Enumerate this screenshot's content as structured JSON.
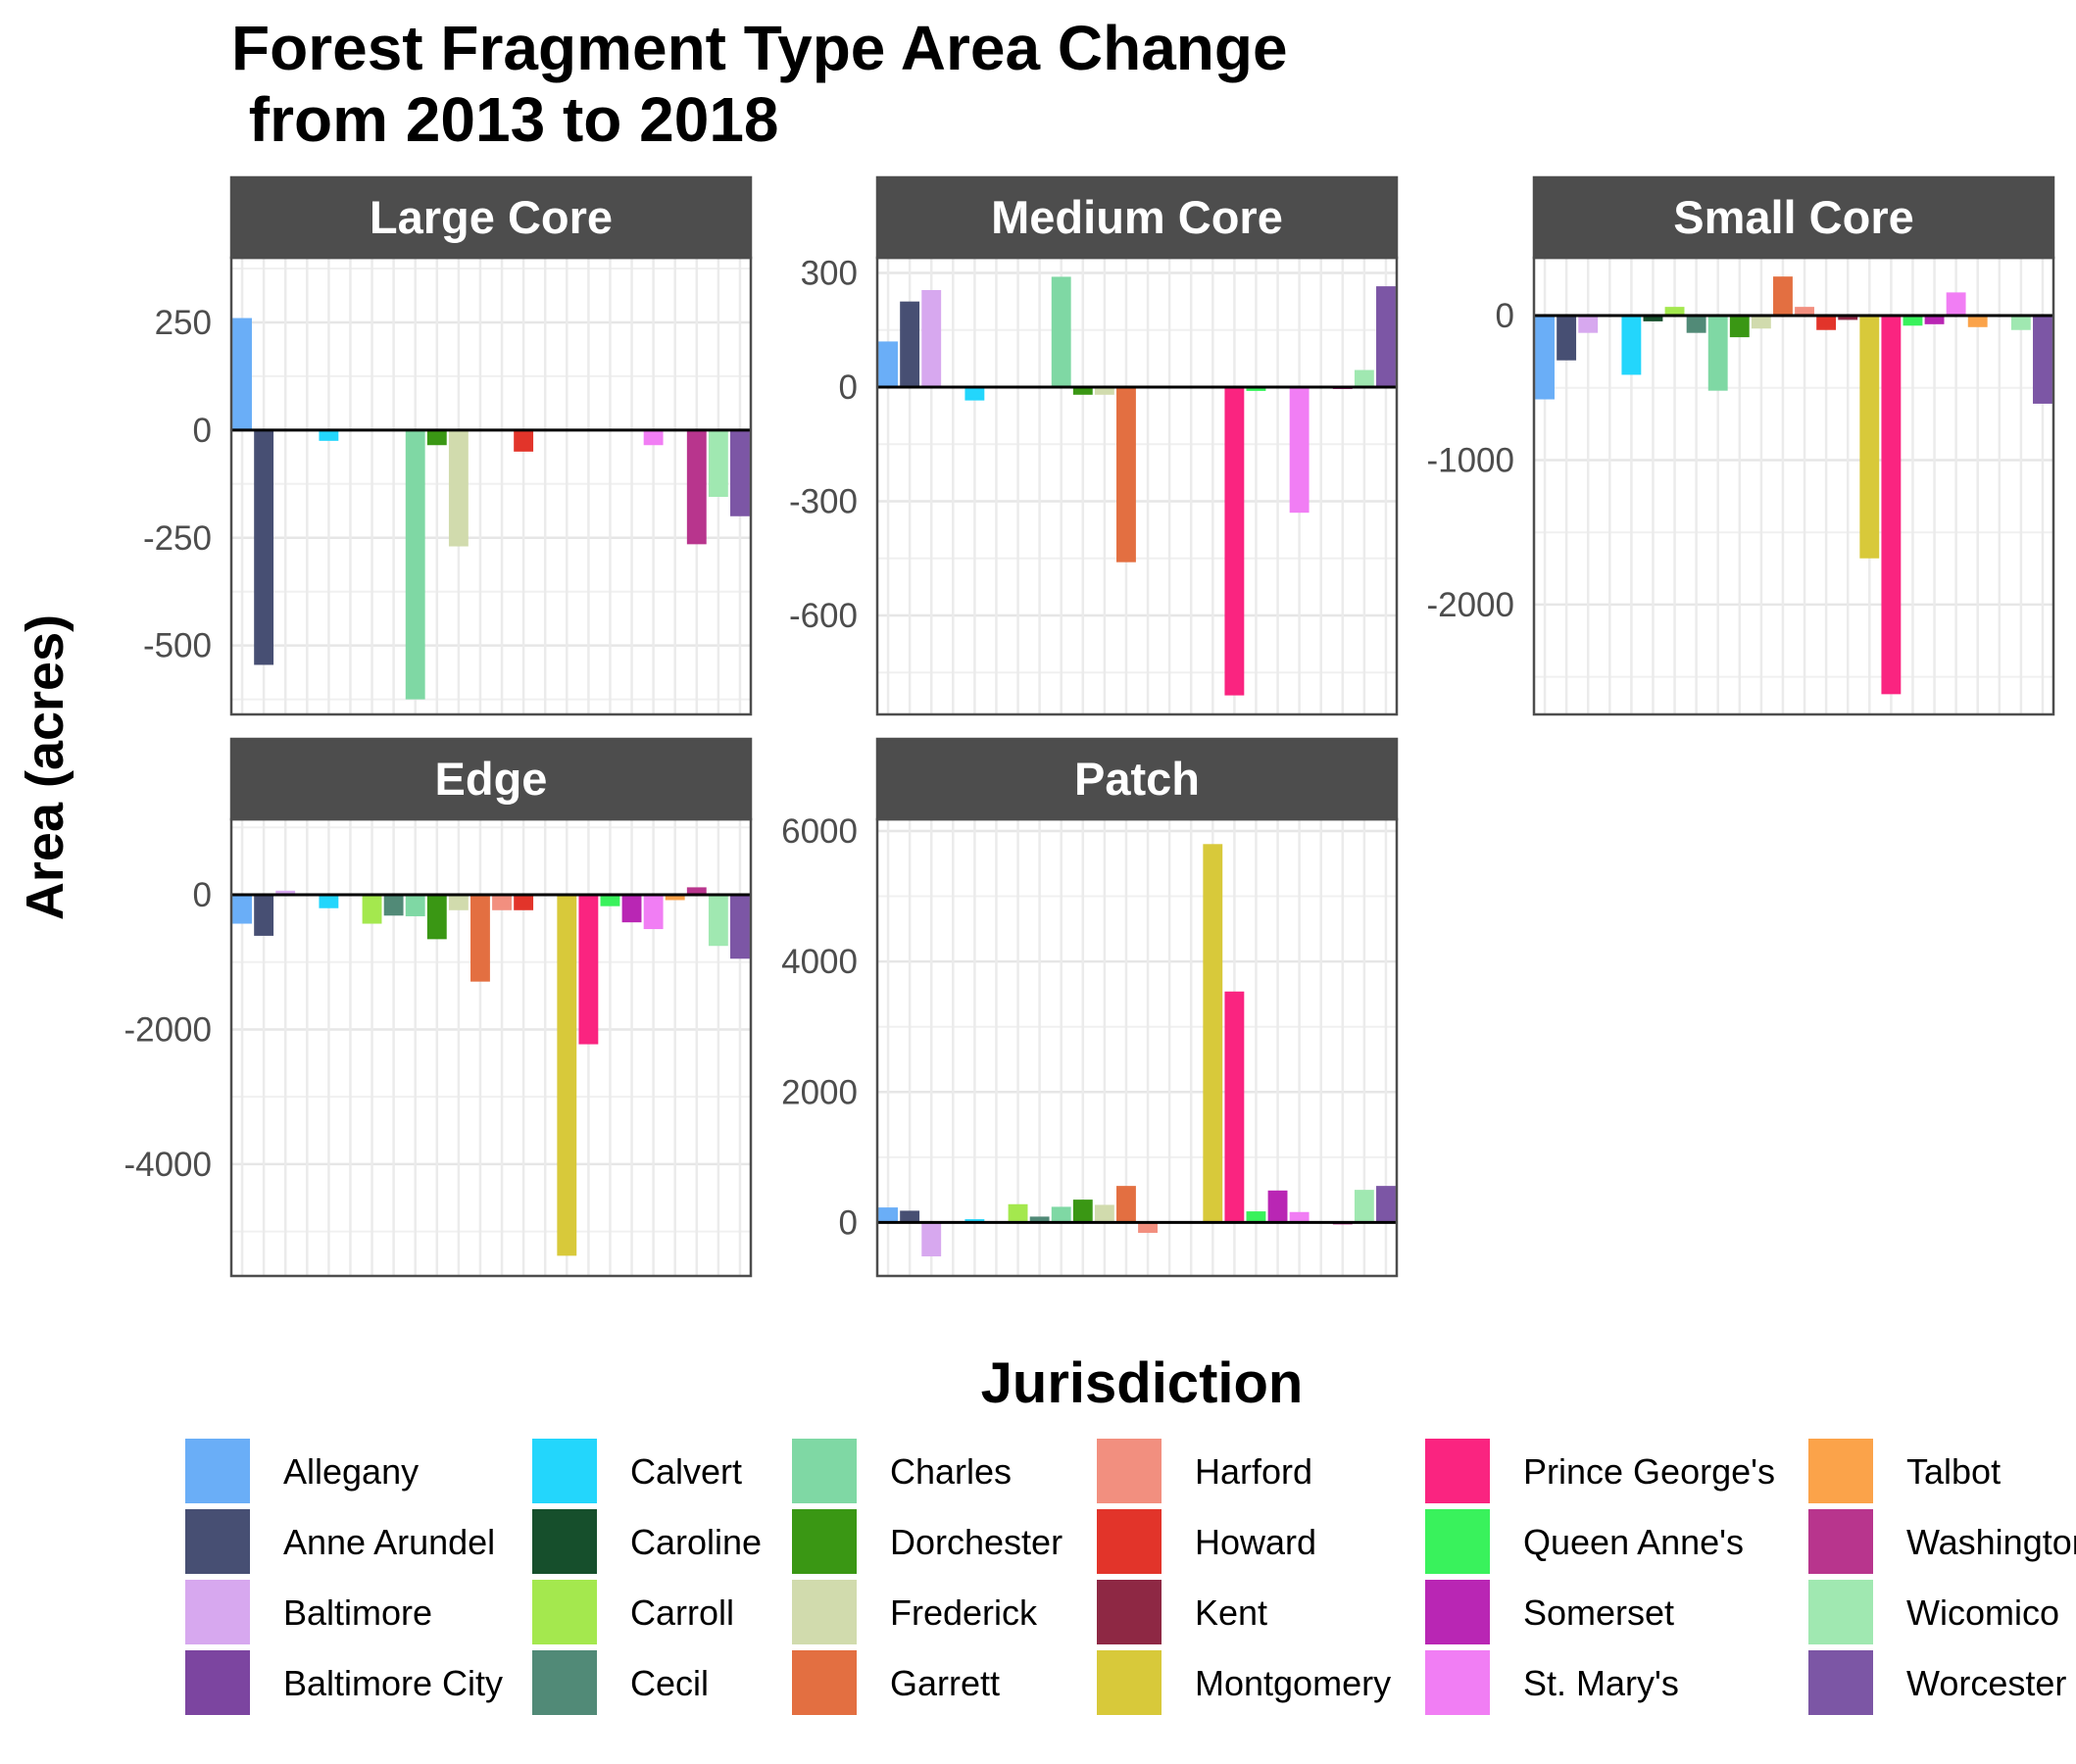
{
  "title_line1": "Forest Fragment Type Area Change",
  "title_line2": " from 2013 to 2018",
  "chart_data": {
    "type": "bar",
    "title": "Forest Fragment Type Area Change\n from 2013 to 2018",
    "ylabel": "Area (acres)",
    "legend_title": "Jurisdiction",
    "legend_position": "bottom",
    "grid": true,
    "categories": [
      "Allegany",
      "Anne Arundel",
      "Baltimore",
      "Baltimore City",
      "Calvert",
      "Caroline",
      "Carroll",
      "Cecil",
      "Charles",
      "Dorchester",
      "Frederick",
      "Garrett",
      "Harford",
      "Howard",
      "Kent",
      "Montgomery",
      "Prince George's",
      "Queen Anne's",
      "Somerset",
      "St. Mary's",
      "Talbot",
      "Washington",
      "Wicomico",
      "Worcester"
    ],
    "colors": {
      "Allegany": "#6aaef7",
      "Anne Arundel": "#474f73",
      "Baltimore": "#d7a8ef",
      "Baltimore City": "#7c45a0",
      "Calvert": "#23d6fc",
      "Caroline": "#164f2c",
      "Carroll": "#a4e84e",
      "Cecil": "#518a77",
      "Charles": "#7fd8a4",
      "Dorchester": "#3a9714",
      "Frederick": "#d1dbad",
      "Garrett": "#e36f41",
      "Harford": "#f28f7f",
      "Howard": "#e2342a",
      "Kent": "#8e2844",
      "Montgomery": "#d8c93a",
      "Prince George's": "#fa2480",
      "Queen Anne's": "#39f25c",
      "Somerset": "#b926b4",
      "St. Mary's": "#f17ef4",
      "Talbot": "#fba34a",
      "Washington": "#b8358d",
      "Wicomico": "#a0e8b1",
      "Worcester": "#7c56a5"
    },
    "panels": [
      {
        "name": "Large Core",
        "ylim": [
          -660,
          400
        ],
        "ticks": [
          -500,
          -250,
          0,
          250
        ],
        "tick_labels": [
          "-500",
          "-250",
          "0",
          "250"
        ],
        "values": {
          "Allegany": 260,
          "Anne Arundel": -545,
          "Calvert": -25,
          "Charles": -625,
          "Dorchester": -35,
          "Frederick": -270,
          "Howard": -50,
          "St. Mary's": -35,
          "Washington": -265,
          "Wicomico": -155,
          "Worcester": -200
        }
      },
      {
        "name": "Medium Core",
        "ylim": [
          -860,
          340
        ],
        "ticks": [
          -600,
          -300,
          0,
          300
        ],
        "tick_labels": [
          "-600",
          "-300",
          "0",
          "300"
        ],
        "values": {
          "Allegany": 120,
          "Anne Arundel": 225,
          "Baltimore": 255,
          "Calvert": -35,
          "Charles": 290,
          "Dorchester": -20,
          "Frederick": -20,
          "Garrett": -460,
          "Prince George's": -810,
          "Queen Anne's": -10,
          "St. Mary's": -330,
          "Washington": -5,
          "Wicomico": 45,
          "Worcester": 265
        }
      },
      {
        "name": "Small Core",
        "ylim": [
          -2760,
          400
        ],
        "ticks": [
          -2000,
          -1000,
          0
        ],
        "tick_labels": [
          "-2000",
          "-1000",
          "0"
        ],
        "values": {
          "Allegany": -580,
          "Anne Arundel": -310,
          "Baltimore": -120,
          "Calvert": -410,
          "Caroline": -40,
          "Carroll": 60,
          "Cecil": -120,
          "Charles": -520,
          "Dorchester": -150,
          "Frederick": -90,
          "Garrett": 270,
          "Harford": 60,
          "Howard": -100,
          "Kent": -30,
          "Montgomery": -1680,
          "Prince George's": -2620,
          "Queen Anne's": -70,
          "Somerset": -60,
          "St. Mary's": 160,
          "Talbot": -80,
          "Wicomico": -100,
          "Worcester": -610
        }
      },
      {
        "name": "Edge",
        "ylim": [
          -5660,
          1120
        ],
        "ticks": [
          -4000,
          -2000,
          0
        ],
        "tick_labels": [
          "-4000",
          "-2000",
          "0"
        ],
        "values": {
          "Allegany": -430,
          "Anne Arundel": -610,
          "Baltimore": 60,
          "Calvert": -200,
          "Carroll": -430,
          "Cecil": -310,
          "Charles": -320,
          "Dorchester": -660,
          "Frederick": -230,
          "Garrett": -1290,
          "Harford": -230,
          "Howard": -230,
          "Montgomery": -5360,
          "Prince George's": -2220,
          "Queen Anne's": -170,
          "Somerset": -410,
          "St. Mary's": -510,
          "Talbot": -80,
          "Washington": 110,
          "Wicomico": -760,
          "Worcester": -950
        }
      },
      {
        "name": "Patch",
        "ylim": [
          -820,
          6180
        ],
        "ticks": [
          0,
          2000,
          4000,
          6000
        ],
        "tick_labels": [
          "0",
          "2000",
          "4000",
          "6000"
        ],
        "values": {
          "Allegany": 230,
          "Anne Arundel": 180,
          "Baltimore": -520,
          "Calvert": 50,
          "Carroll": 280,
          "Cecil": 90,
          "Charles": 240,
          "Dorchester": 350,
          "Frederick": 270,
          "Garrett": 560,
          "Harford": -160,
          "Montgomery": 5800,
          "Prince George's": 3540,
          "Queen Anne's": 170,
          "Somerset": 490,
          "St. Mary's": 160,
          "Talbot": 20,
          "Washington": -30,
          "Wicomico": 500,
          "Worcester": 560
        }
      }
    ]
  }
}
